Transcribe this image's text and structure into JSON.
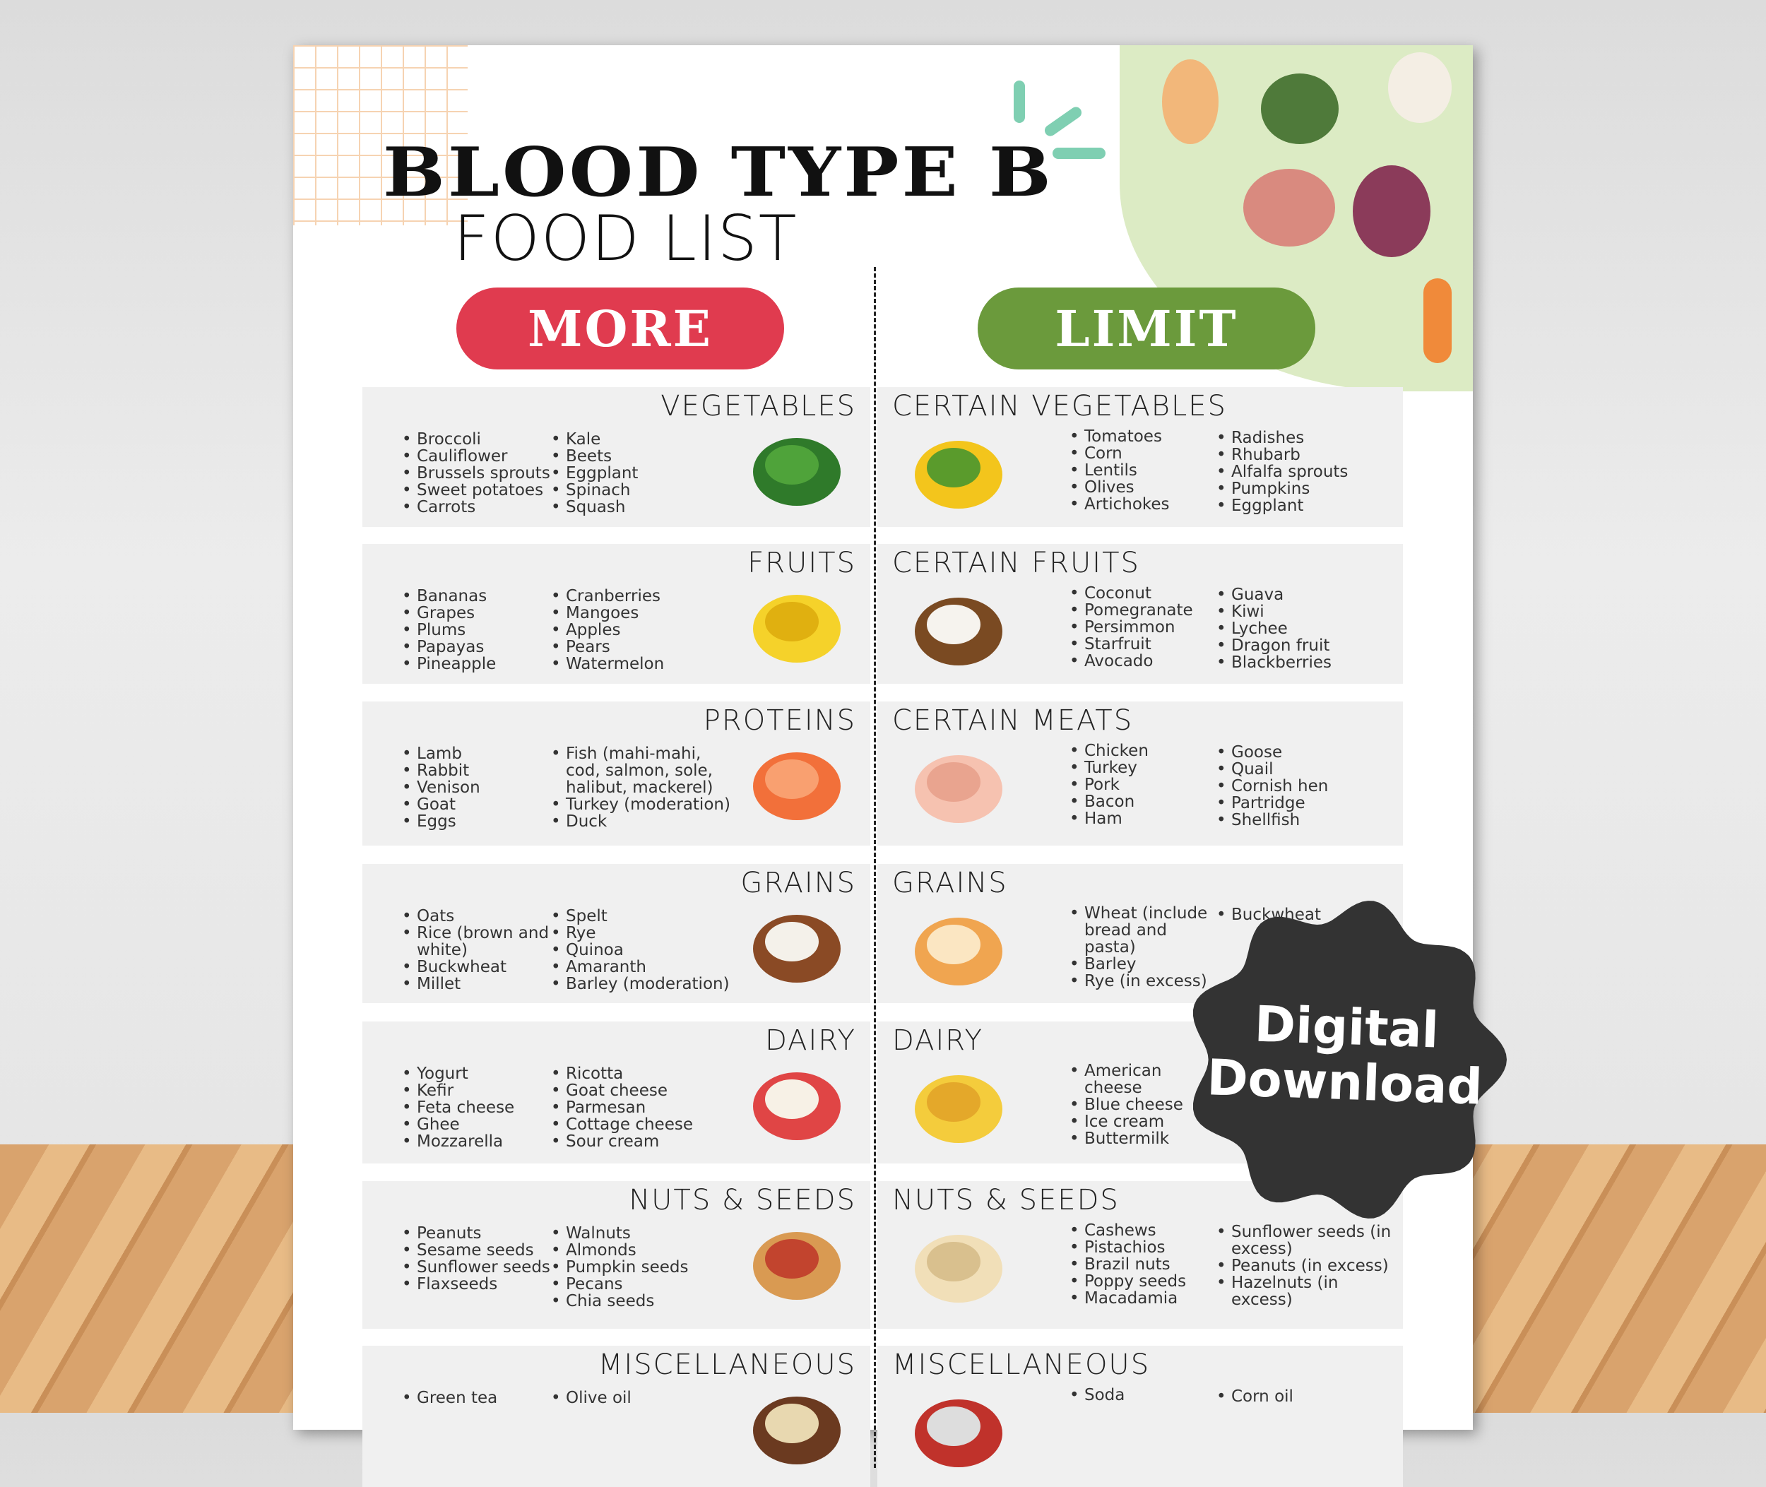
{
  "title": {
    "line1": "BLOOD TYPE B",
    "line2": "FOOD LIST"
  },
  "more_label": "MORE",
  "limit_label": "LIMIT",
  "colors": {
    "more": "#e03b4f",
    "limit": "#6b9a3c",
    "panel": "#f0f0f0",
    "badge": "#333333"
  },
  "badge": {
    "line1": "Digital",
    "line2": "Download"
  },
  "rows": [
    {
      "left": {
        "heading": "VEGETABLES",
        "icon": "spinach-icon",
        "col1": [
          "Broccoli",
          "Cauliflower",
          "Brussels sprouts",
          "Sweet potatoes",
          "Carrots"
        ],
        "col2": [
          "Kale",
          "Beets",
          "Eggplant",
          "Spinach",
          "Squash"
        ]
      },
      "right": {
        "heading": "CERTAIN VEGETABLES",
        "icon": "corn-icon",
        "col1": [
          "Tomatoes",
          "Corn",
          "Lentils",
          "Olives",
          "Artichokes"
        ],
        "col2": [
          "Radishes",
          "Rhubarb",
          "Alfalfa sprouts",
          "Pumpkins",
          "Eggplant"
        ]
      }
    },
    {
      "left": {
        "heading": "FRUITS",
        "icon": "banana-icon",
        "col1": [
          "Bananas",
          "Grapes",
          "Plums",
          "Papayas",
          "Pineapple"
        ],
        "col2": [
          "Cranberries",
          "Mangoes",
          "Apples",
          "Pears",
          "Watermelon"
        ]
      },
      "right": {
        "heading": "CERTAIN FRUITS",
        "icon": "coconut-icon",
        "col1": [
          "Coconut",
          "Pomegranate",
          "Persimmon",
          "Starfruit",
          "Avocado"
        ],
        "col2": [
          "Guava",
          "Kiwi",
          "Lychee",
          "Dragon fruit",
          "Blackberries"
        ]
      }
    },
    {
      "left": {
        "heading": "PROTEINS",
        "icon": "salmon-icon",
        "col1": [
          "Lamb",
          "Rabbit",
          "Venison",
          "Goat",
          "Eggs"
        ],
        "col2": [
          "Fish (mahi-mahi, cod, salmon, sole, halibut, mackerel)",
          "Turkey (moderation)",
          "Duck"
        ]
      },
      "right": {
        "heading": "CERTAIN MEATS",
        "icon": "chicken-icon",
        "col1": [
          "Chicken",
          "Turkey",
          "Pork",
          "Bacon",
          "Ham"
        ],
        "col2": [
          "Goose",
          "Quail",
          "Cornish hen",
          "Partridge",
          "Shellfish"
        ]
      }
    },
    {
      "left": {
        "heading": "GRAINS",
        "icon": "rice-bowl-icon",
        "col1": [
          "Oats",
          "Rice (brown and white)",
          "Buckwheat",
          "Millet"
        ],
        "col2": [
          "Spelt",
          "Rye",
          "Quinoa",
          "Amaranth",
          "Barley (moderation)"
        ]
      },
      "right": {
        "heading": "GRAINS",
        "icon": "bread-icon",
        "col1": [
          "Wheat (include bread and pasta)",
          "Barley",
          "Rye (in excess)"
        ],
        "col2": [
          "Buckwheat"
        ]
      }
    },
    {
      "left": {
        "heading": "DAIRY",
        "icon": "parfait-icon",
        "col1": [
          "Yogurt",
          "Kefir",
          "Feta cheese",
          "Ghee",
          "Mozzarella"
        ],
        "col2": [
          "Ricotta",
          "Goat cheese",
          "Parmesan",
          "Cottage cheese",
          "Sour cream"
        ]
      },
      "right": {
        "heading": "DAIRY",
        "icon": "cheese-icon",
        "col1": [
          "American cheese",
          "Blue cheese",
          "Ice cream",
          "Buttermilk"
        ],
        "col2": []
      }
    },
    {
      "left": {
        "heading": "NUTS & SEEDS",
        "icon": "peanut-icon",
        "col1": [
          "Peanuts",
          "Sesame seeds",
          "Sunflower seeds",
          "Flaxseeds"
        ],
        "col2": [
          "Walnuts",
          "Almonds",
          "Pumpkin seeds",
          "Pecans",
          "Chia seeds"
        ]
      },
      "right": {
        "heading": "NUTS & SEEDS",
        "icon": "cashew-icon",
        "col1": [
          "Cashews",
          "Pistachios",
          "Brazil nuts",
          "Poppy seeds",
          "Macadamia"
        ],
        "col2": [
          "Sunflower seeds (in excess)",
          "Peanuts (in excess)",
          "Hazelnuts (in excess)"
        ]
      }
    },
    {
      "left": {
        "heading": "MISCELLANEOUS",
        "icon": "oil-bottle-icon",
        "col1": [
          "Green tea"
        ],
        "col2": [
          "Olive oil"
        ]
      },
      "right": {
        "heading": "MISCELLANEOUS",
        "icon": "soda-can-icon",
        "col1": [
          "Soda"
        ],
        "col2": [
          "Corn oil"
        ]
      }
    }
  ]
}
